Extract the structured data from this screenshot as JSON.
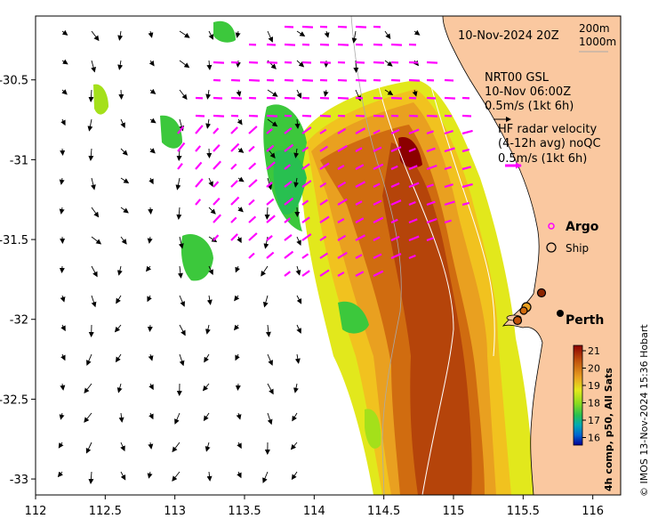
{
  "map": {
    "lon_range": [
      112,
      116.2
    ],
    "lat_range": [
      -33.1,
      -30.1
    ],
    "lon_ticks": [
      "112",
      "112.5",
      "113",
      "113.5",
      "114",
      "114.5",
      "115",
      "115.5",
      "116"
    ],
    "lat_ticks": [
      "-30.5",
      "-31",
      "-31.5",
      "-32",
      "-32.5",
      "-33"
    ],
    "lat_tick_values": [
      -30.5,
      -31,
      -31.5,
      -32,
      -32.5,
      -33
    ],
    "lon_tick_values": [
      112,
      112.5,
      113,
      113.5,
      114,
      114.5,
      115,
      115.5,
      116
    ],
    "land_color": "#FAC8A0",
    "coast_color": "#000000"
  },
  "header": {
    "date": "10-Nov-2024 20Z",
    "isobath_200": "200m",
    "isobath_1000": "1000m"
  },
  "model_legend": {
    "line1": "NRT00 GSL",
    "line2": "10-Nov 06:00Z",
    "line3": "0.5m/s (1kt 6h)"
  },
  "radar_legend": {
    "line1": "HF radar velocity",
    "line2": "(4-12h avg) noQC",
    "line3": "0.5m/s (1kt 6h)",
    "color": "#FF00FF"
  },
  "symbols": {
    "argo_label": "Argo",
    "ship_label": "Ship",
    "city_label": "Perth"
  },
  "colorbar": {
    "ticks": [
      "21",
      "20",
      "19",
      "18",
      "17",
      "16"
    ],
    "caption": "4h comp, p50, All Sats",
    "colors": [
      "#8B0000",
      "#B5440A",
      "#D06C10",
      "#E9A020",
      "#F1C21F",
      "#E2E81C",
      "#A4E01A",
      "#3CC83C",
      "#00B496",
      "#00A0D2",
      "#0050D2",
      "#000096"
    ]
  },
  "credit": "© IMOS 13-Nov-2024 15:36 Hobart"
}
